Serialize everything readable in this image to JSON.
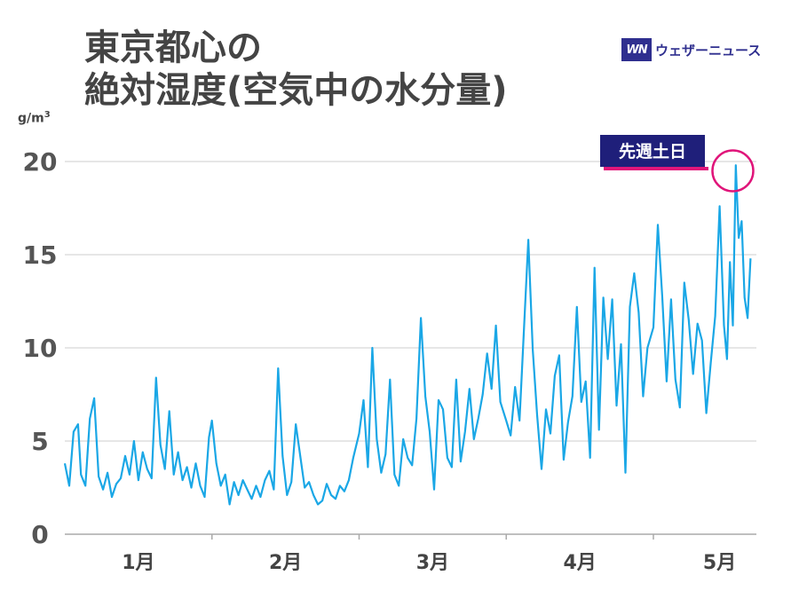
{
  "header": {
    "title_line1": "東京都心の",
    "title_line2": "絶対湿度(空気中の水分量)"
  },
  "brand": {
    "logo_text": "WN",
    "name": "ウェザーニュース",
    "color": "#2f2f8f"
  },
  "chart_data": {
    "type": "line",
    "ylabel": "g/m",
    "ylabel_superscript": "3",
    "ylim": [
      0,
      22
    ],
    "yticks": [
      0,
      5,
      10,
      15,
      20
    ],
    "xlim": [
      0,
      4.7
    ],
    "xtick_labels": [
      {
        "label": "1月",
        "x": 0.5
      },
      {
        "label": "2月",
        "x": 1.5
      },
      {
        "label": "3月",
        "x": 2.5
      },
      {
        "label": "4月",
        "x": 3.5
      },
      {
        "label": "5月",
        "x": 4.45
      }
    ],
    "month_boundaries": [
      1,
      2,
      3,
      4
    ],
    "grid": true,
    "line_color": "#1aa7e6",
    "annotation": {
      "label": "先週土日",
      "x": 4.54,
      "y": 19.5,
      "box_color": "#1f1f7a",
      "circle_color": "#e0157a"
    },
    "series": [
      {
        "x": [
          0,
          0.03,
          0.06,
          0.09,
          0.11,
          0.14,
          0.17,
          0.2,
          0.23,
          0.26,
          0.29,
          0.32,
          0.35,
          0.38,
          0.41,
          0.44,
          0.47,
          0.5,
          0.53,
          0.56,
          0.59,
          0.62,
          0.65,
          0.68,
          0.71,
          0.74,
          0.77,
          0.8,
          0.83,
          0.86,
          0.89,
          0.92,
          0.95,
          0.98,
          1.0,
          1.03,
          1.06,
          1.09,
          1.12,
          1.15,
          1.18,
          1.21,
          1.24,
          1.27,
          1.3,
          1.33,
          1.36,
          1.39,
          1.42,
          1.45,
          1.48,
          1.51,
          1.54,
          1.57,
          1.6,
          1.63,
          1.66,
          1.69,
          1.72,
          1.75,
          1.78,
          1.81,
          1.84,
          1.87,
          1.9,
          1.93,
          1.96,
          2.0,
          2.03,
          2.06,
          2.09,
          2.12,
          2.15,
          2.18,
          2.21,
          2.24,
          2.27,
          2.3,
          2.33,
          2.36,
          2.39,
          2.42,
          2.45,
          2.48,
          2.51,
          2.54,
          2.57,
          2.6,
          2.63,
          2.66,
          2.69,
          2.72,
          2.75,
          2.78,
          2.81,
          2.84,
          2.87,
          2.9,
          2.93,
          2.96,
          3.0,
          3.03,
          3.06,
          3.09,
          3.12,
          3.15,
          3.18,
          3.21,
          3.24,
          3.27,
          3.3,
          3.33,
          3.36,
          3.39,
          3.42,
          3.45,
          3.48,
          3.51,
          3.54,
          3.57,
          3.6,
          3.63,
          3.66,
          3.69,
          3.72,
          3.75,
          3.78,
          3.81,
          3.84,
          3.87,
          3.9,
          3.93,
          3.96,
          4.0,
          4.03,
          4.06,
          4.09,
          4.12,
          4.15,
          4.18,
          4.21,
          4.24,
          4.27,
          4.3,
          4.33,
          4.36,
          4.39,
          4.42,
          4.45,
          4.48,
          4.5,
          4.52,
          4.54,
          4.56,
          4.58,
          4.6,
          4.62,
          4.64,
          4.66
        ],
        "values": [
          3.8,
          2.6,
          5.5,
          5.9,
          3.2,
          2.6,
          6.2,
          7.3,
          3.1,
          2.4,
          3.3,
          2.0,
          2.7,
          3.0,
          4.2,
          3.2,
          5.0,
          2.9,
          4.4,
          3.5,
          3.0,
          8.4,
          4.8,
          3.5,
          6.6,
          3.2,
          4.4,
          2.9,
          3.6,
          2.5,
          3.8,
          2.6,
          2.0,
          5.2,
          6.1,
          3.8,
          2.6,
          3.2,
          1.6,
          2.8,
          2.1,
          2.9,
          2.4,
          1.9,
          2.6,
          2.0,
          2.9,
          3.4,
          2.4,
          8.9,
          4.2,
          2.1,
          2.8,
          5.9,
          4.2,
          2.5,
          2.8,
          2.1,
          1.6,
          1.8,
          2.7,
          2.1,
          1.9,
          2.6,
          2.3,
          2.9,
          4.1,
          5.4,
          7.2,
          3.6,
          10.0,
          5.1,
          3.3,
          4.3,
          8.3,
          3.2,
          2.6,
          5.1,
          4.1,
          3.7,
          6.2,
          11.6,
          7.4,
          5.5,
          2.4,
          7.2,
          6.7,
          4.1,
          3.6,
          8.3,
          3.9,
          5.5,
          7.8,
          5.1,
          6.2,
          7.5,
          9.7,
          7.8,
          11.2,
          7.1,
          6.1,
          5.3,
          7.9,
          6.1,
          10.9,
          15.8,
          9.9,
          6.4,
          3.5,
          6.7,
          5.4,
          8.5,
          9.6,
          4.0,
          6.0,
          7.4,
          12.2,
          7.1,
          8.2,
          4.1,
          14.3,
          5.6,
          12.7,
          9.4,
          12.6,
          6.9,
          10.2,
          3.3,
          12.2,
          14.0,
          11.9,
          7.4,
          10.0,
          11.1,
          16.6,
          12.8,
          8.2,
          12.6,
          8.3,
          6.8,
          13.5,
          11.5,
          8.6,
          11.3,
          10.4,
          6.5,
          9.2,
          11.7,
          17.6,
          11.2,
          9.4,
          14.6,
          11.2,
          19.8,
          15.9,
          16.8,
          12.7,
          11.6,
          14.8
        ]
      }
    ]
  }
}
